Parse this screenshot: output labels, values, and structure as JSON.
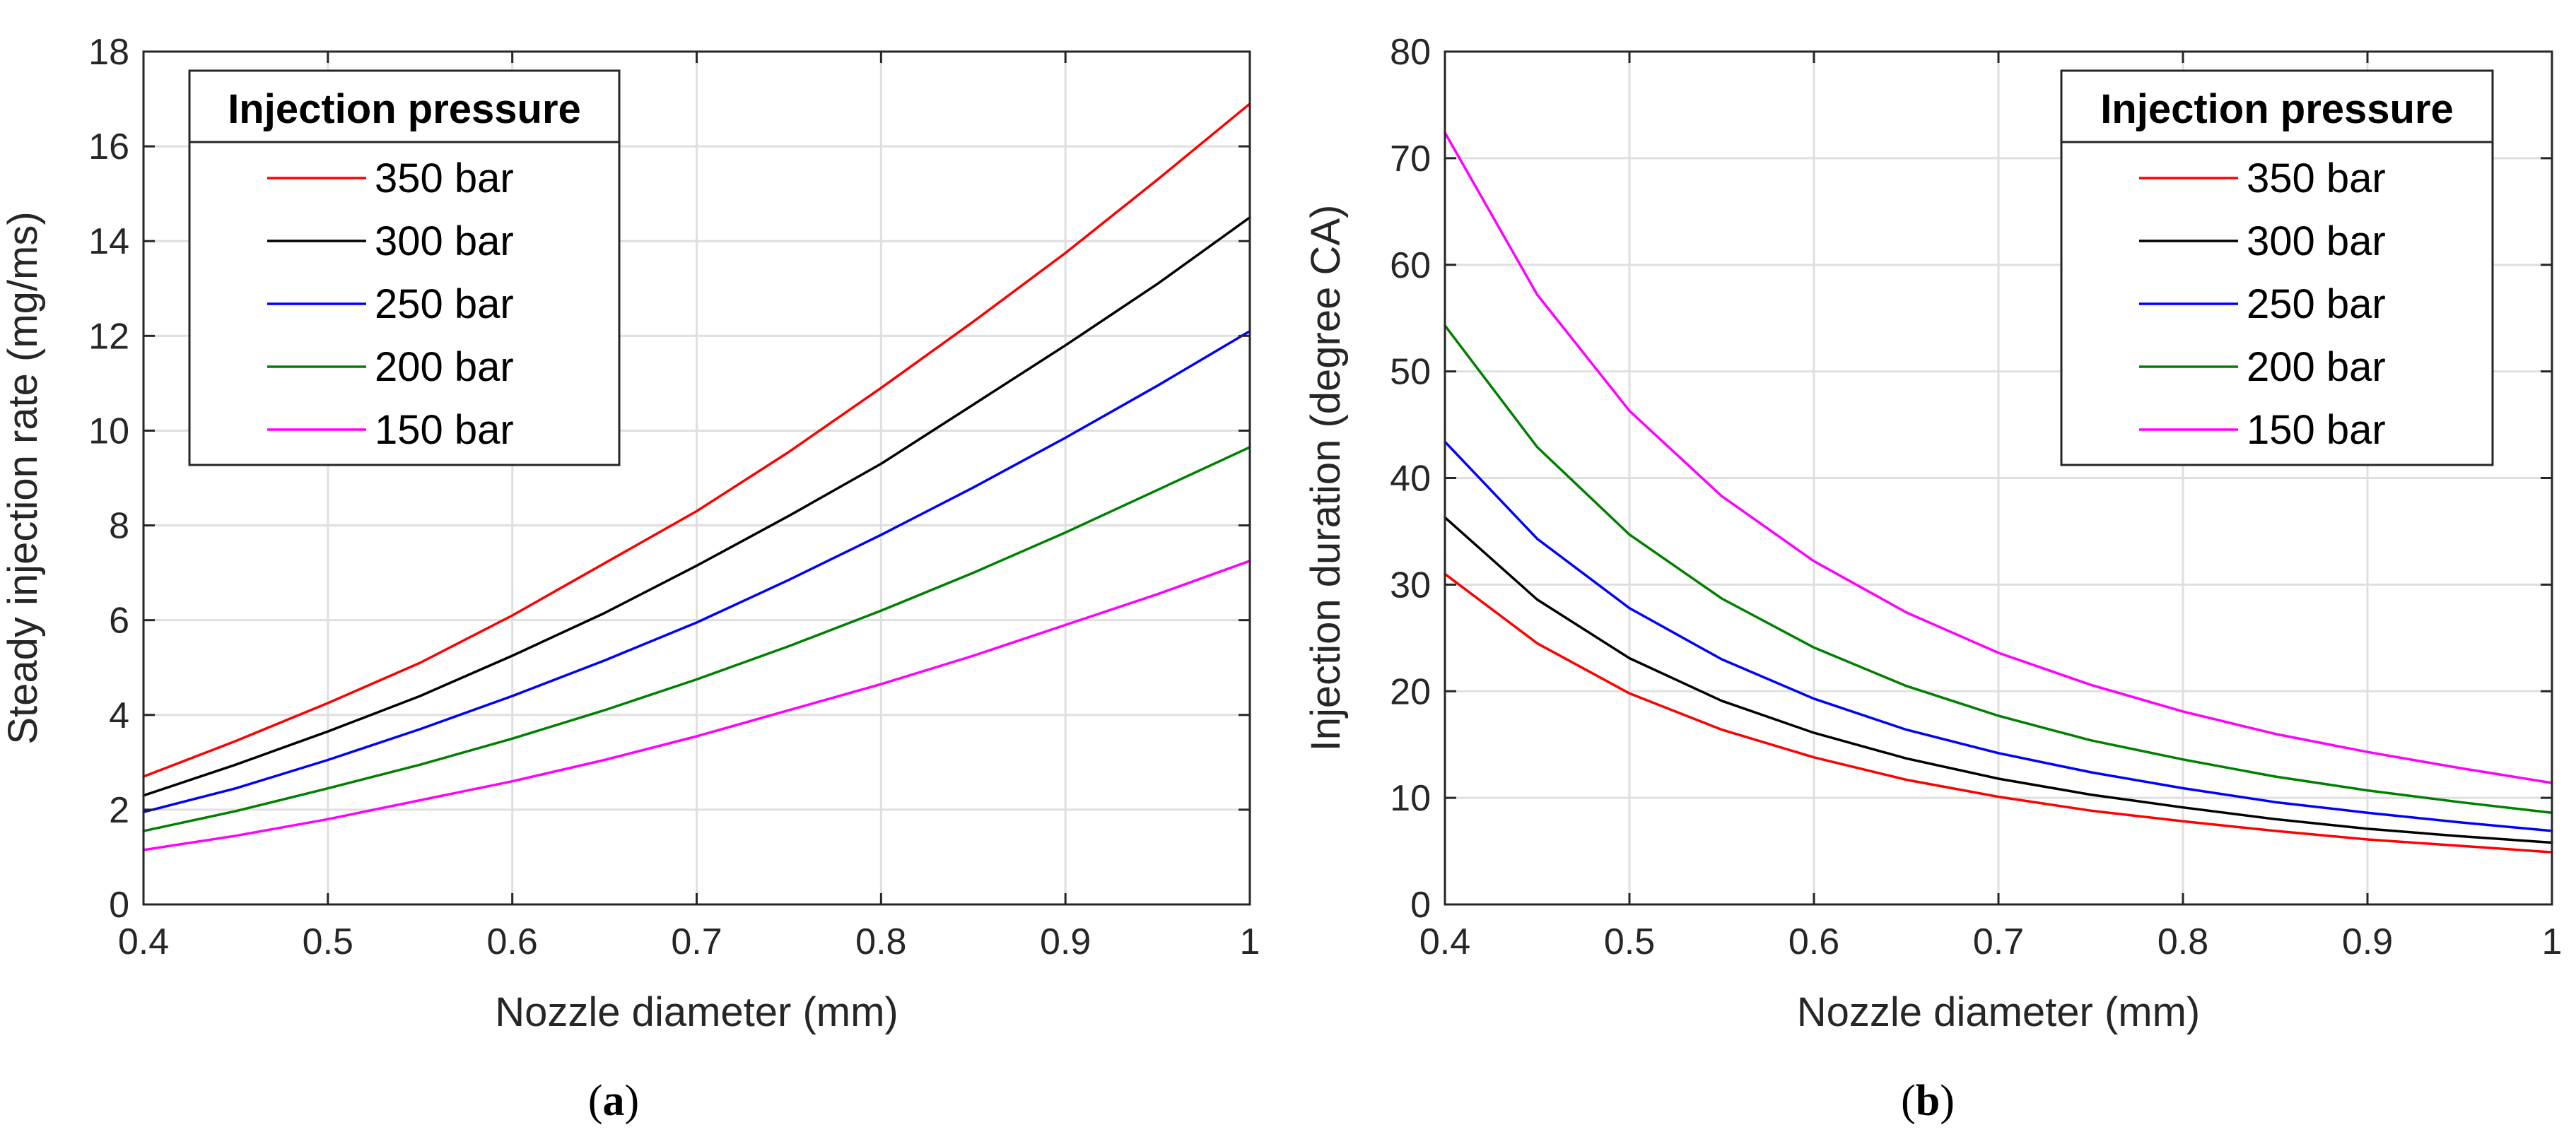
{
  "chart_data": [
    {
      "type": "line",
      "panel": "a",
      "caption": {
        "open": "(",
        "letter": "a",
        "close": ")"
      },
      "xlabel": "Nozzle diameter (mm)",
      "ylabel": "Steady  injection rate (mg/ms)",
      "xlim": [
        0.4,
        1
      ],
      "ylim": [
        0,
        18
      ],
      "xticks": [
        0.4,
        0.5,
        0.6,
        0.7,
        0.8,
        0.9,
        1
      ],
      "xtick_labels": [
        "0.4",
        "0.5",
        "0.6",
        "0.7",
        "0.8",
        "0.9",
        "1"
      ],
      "yticks": [
        0,
        2,
        4,
        6,
        8,
        10,
        12,
        14,
        16,
        18
      ],
      "ytick_labels": [
        "0",
        "2",
        "4",
        "6",
        "8",
        "10",
        "12",
        "14",
        "16",
        "18"
      ],
      "grid": true,
      "legend": {
        "title": "Injection pressure",
        "placement": "top-left"
      },
      "x": [
        0.4,
        0.45,
        0.5,
        0.55,
        0.6,
        0.65,
        0.7,
        0.75,
        0.8,
        0.85,
        0.9,
        0.95,
        1.0
      ],
      "series": [
        {
          "name": "350 bar",
          "color": "#ff0000",
          "values": [
            2.7,
            3.45,
            4.25,
            5.1,
            6.1,
            7.2,
            8.3,
            9.55,
            10.9,
            12.3,
            13.75,
            15.3,
            16.9
          ]
        },
        {
          "name": "300 bar",
          "color": "#000000",
          "values": [
            2.3,
            2.95,
            3.65,
            4.4,
            5.25,
            6.15,
            7.15,
            8.2,
            9.3,
            10.55,
            11.8,
            13.1,
            14.5
          ]
        },
        {
          "name": "250 bar",
          "color": "#0000ff",
          "values": [
            1.95,
            2.45,
            3.05,
            3.7,
            4.4,
            5.15,
            5.95,
            6.85,
            7.8,
            8.8,
            9.85,
            10.95,
            12.1
          ]
        },
        {
          "name": "200 bar",
          "color": "#008000",
          "values": [
            1.55,
            1.97,
            2.45,
            2.95,
            3.5,
            4.1,
            4.75,
            5.45,
            6.2,
            7.0,
            7.85,
            8.75,
            9.65
          ]
        },
        {
          "name": "150 bar",
          "color": "#ff00ff",
          "values": [
            1.15,
            1.45,
            1.8,
            2.2,
            2.6,
            3.05,
            3.55,
            4.1,
            4.65,
            5.25,
            5.9,
            6.55,
            7.25
          ]
        }
      ]
    },
    {
      "type": "line",
      "panel": "b",
      "caption": {
        "open": "(",
        "letter": "b",
        "close": ")"
      },
      "xlabel": "Nozzle diameter (mm)",
      "ylabel": "Injection duration (degree CA)",
      "xlim": [
        0.4,
        1
      ],
      "ylim": [
        0,
        80
      ],
      "xticks": [
        0.4,
        0.5,
        0.6,
        0.7,
        0.8,
        0.9,
        1
      ],
      "xtick_labels": [
        "0.4",
        "0.5",
        "0.6",
        "0.7",
        "0.8",
        "0.9",
        "1"
      ],
      "yticks": [
        0,
        10,
        20,
        30,
        40,
        50,
        60,
        70,
        80
      ],
      "ytick_labels": [
        "0",
        "10",
        "20",
        "30",
        "40",
        "50",
        "60",
        "70",
        "80"
      ],
      "grid": true,
      "legend": {
        "title": "Injection pressure",
        "placement": "top-right"
      },
      "x": [
        0.4,
        0.45,
        0.5,
        0.55,
        0.6,
        0.65,
        0.7,
        0.75,
        0.8,
        0.85,
        0.9,
        0.95,
        1.0
      ],
      "series": [
        {
          "name": "350 bar",
          "color": "#ff0000",
          "values": [
            31.0,
            24.5,
            19.8,
            16.4,
            13.8,
            11.7,
            10.1,
            8.8,
            7.8,
            6.9,
            6.1,
            5.5,
            4.9
          ]
        },
        {
          "name": "300 bar",
          "color": "#000000",
          "values": [
            36.3,
            28.6,
            23.1,
            19.1,
            16.1,
            13.7,
            11.8,
            10.3,
            9.1,
            8.0,
            7.1,
            6.4,
            5.8
          ]
        },
        {
          "name": "250 bar",
          "color": "#0000ff",
          "values": [
            43.4,
            34.3,
            27.8,
            23.0,
            19.3,
            16.4,
            14.2,
            12.4,
            10.9,
            9.6,
            8.6,
            7.7,
            6.9
          ]
        },
        {
          "name": "200 bar",
          "color": "#008000",
          "values": [
            54.3,
            42.9,
            34.7,
            28.7,
            24.1,
            20.5,
            17.7,
            15.4,
            13.6,
            12.0,
            10.7,
            9.6,
            8.6
          ]
        },
        {
          "name": "150 bar",
          "color": "#ff00ff",
          "values": [
            72.4,
            57.2,
            46.3,
            38.3,
            32.2,
            27.4,
            23.6,
            20.6,
            18.1,
            16.0,
            14.3,
            12.8,
            11.4
          ]
        }
      ]
    }
  ]
}
